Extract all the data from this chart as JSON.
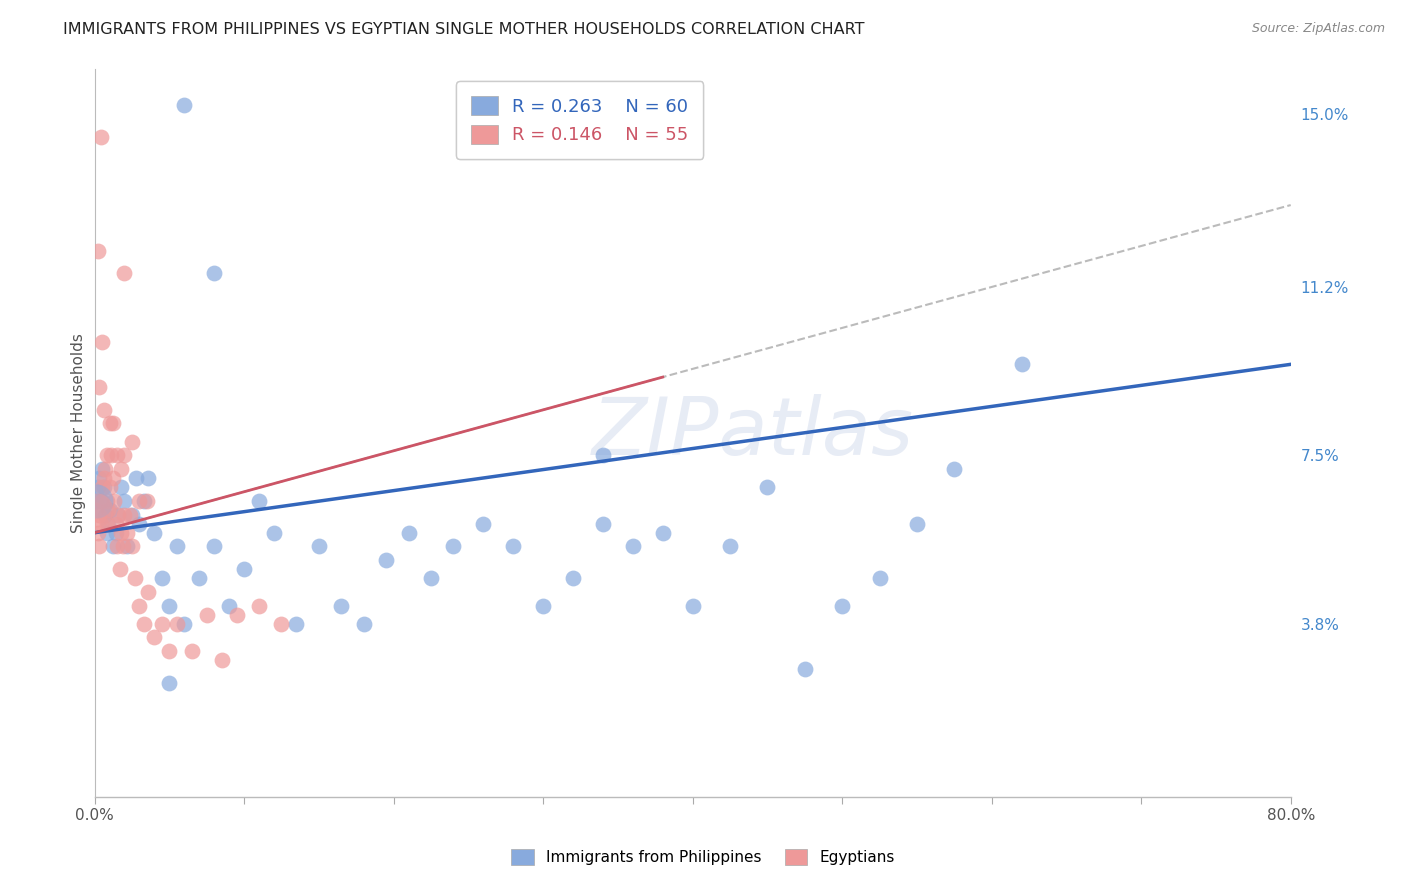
{
  "title": "IMMIGRANTS FROM PHILIPPINES VS EGYPTIAN SINGLE MOTHER HOUSEHOLDS CORRELATION CHART",
  "source": "Source: ZipAtlas.com",
  "ylabel": "Single Mother Households",
  "xlim": [
    0.0,
    0.8
  ],
  "ylim": [
    0.0,
    0.16
  ],
  "xticks": [
    0.0,
    0.1,
    0.2,
    0.3,
    0.4,
    0.5,
    0.6,
    0.7,
    0.8
  ],
  "xticklabels": [
    "0.0%",
    "",
    "",
    "",
    "",
    "",
    "",
    "",
    "80.0%"
  ],
  "ytick_labels_right": [
    "",
    "3.8%",
    "",
    "7.5%",
    "",
    "11.2%",
    "",
    "15.0%"
  ],
  "ytick_vals_right": [
    0.0,
    0.038,
    0.057,
    0.075,
    0.094,
    0.112,
    0.131,
    0.15
  ],
  "legend_R1": "R = 0.263",
  "legend_N1": "N = 60",
  "legend_R2": "R = 0.146",
  "legend_N2": "N = 55",
  "color_philippines": "#88AADD",
  "color_egypt": "#EE9999",
  "color_line_philippines": "#3366BB",
  "color_line_egypt": "#CC5566",
  "color_line_egypt_dash": "#BBBBBB",
  "watermark": "ZIPatlas",
  "philippines_x": [
    0.001,
    0.002,
    0.003,
    0.004,
    0.005,
    0.006,
    0.007,
    0.008,
    0.009,
    0.01,
    0.012,
    0.014,
    0.016,
    0.018,
    0.02,
    0.022,
    0.025,
    0.028,
    0.03,
    0.033,
    0.036,
    0.04,
    0.045,
    0.05,
    0.055,
    0.06,
    0.07,
    0.08,
    0.09,
    0.1,
    0.11,
    0.12,
    0.135,
    0.15,
    0.165,
    0.18,
    0.195,
    0.21,
    0.225,
    0.24,
    0.26,
    0.28,
    0.3,
    0.32,
    0.34,
    0.36,
    0.38,
    0.4,
    0.425,
    0.45,
    0.475,
    0.5,
    0.525,
    0.55,
    0.575,
    0.34,
    0.06,
    0.08,
    0.62,
    0.05
  ],
  "philippines_y": [
    0.065,
    0.068,
    0.07,
    0.065,
    0.072,
    0.068,
    0.062,
    0.058,
    0.06,
    0.063,
    0.055,
    0.058,
    0.062,
    0.068,
    0.065,
    0.055,
    0.062,
    0.07,
    0.06,
    0.065,
    0.07,
    0.058,
    0.048,
    0.042,
    0.055,
    0.038,
    0.048,
    0.055,
    0.042,
    0.05,
    0.065,
    0.058,
    0.038,
    0.055,
    0.042,
    0.038,
    0.052,
    0.058,
    0.048,
    0.055,
    0.06,
    0.055,
    0.042,
    0.048,
    0.06,
    0.055,
    0.058,
    0.042,
    0.055,
    0.068,
    0.028,
    0.042,
    0.048,
    0.06,
    0.072,
    0.075,
    0.152,
    0.115,
    0.095,
    0.025
  ],
  "egypt_x": [
    0.001,
    0.002,
    0.003,
    0.003,
    0.004,
    0.005,
    0.005,
    0.006,
    0.007,
    0.008,
    0.008,
    0.009,
    0.01,
    0.011,
    0.012,
    0.013,
    0.014,
    0.015,
    0.016,
    0.017,
    0.018,
    0.019,
    0.02,
    0.022,
    0.024,
    0.025,
    0.027,
    0.03,
    0.033,
    0.036,
    0.04,
    0.045,
    0.05,
    0.055,
    0.065,
    0.075,
    0.085,
    0.095,
    0.11,
    0.125,
    0.006,
    0.008,
    0.01,
    0.012,
    0.015,
    0.018,
    0.002,
    0.003,
    0.004,
    0.005,
    0.02,
    0.025,
    0.03,
    0.035,
    0.02
  ],
  "egypt_y": [
    0.063,
    0.058,
    0.055,
    0.062,
    0.06,
    0.068,
    0.065,
    0.07,
    0.072,
    0.065,
    0.06,
    0.063,
    0.068,
    0.075,
    0.07,
    0.065,
    0.06,
    0.055,
    0.062,
    0.05,
    0.058,
    0.055,
    0.062,
    0.058,
    0.062,
    0.055,
    0.048,
    0.042,
    0.038,
    0.045,
    0.035,
    0.038,
    0.032,
    0.038,
    0.032,
    0.04,
    0.03,
    0.04,
    0.042,
    0.038,
    0.085,
    0.075,
    0.082,
    0.082,
    0.075,
    0.072,
    0.12,
    0.09,
    0.145,
    0.1,
    0.115,
    0.078,
    0.065,
    0.065,
    0.075
  ]
}
